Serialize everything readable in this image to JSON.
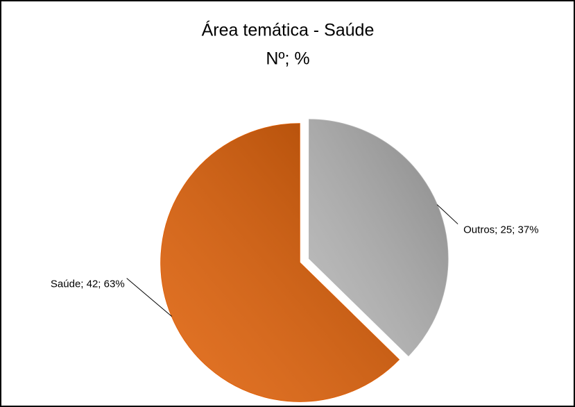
{
  "chart_data": {
    "type": "pie",
    "title": "Área temática - Saúde",
    "subtitle": "Nº; %",
    "categories": [
      "Outros",
      "Saúde"
    ],
    "values": [
      25,
      42
    ],
    "value_labels": [
      "Outros; 25; 37%",
      "Saúde; 42; 63%"
    ],
    "colors": [
      "#b4b4b4",
      "#e05c00"
    ],
    "exploded": [
      true,
      false
    ]
  }
}
